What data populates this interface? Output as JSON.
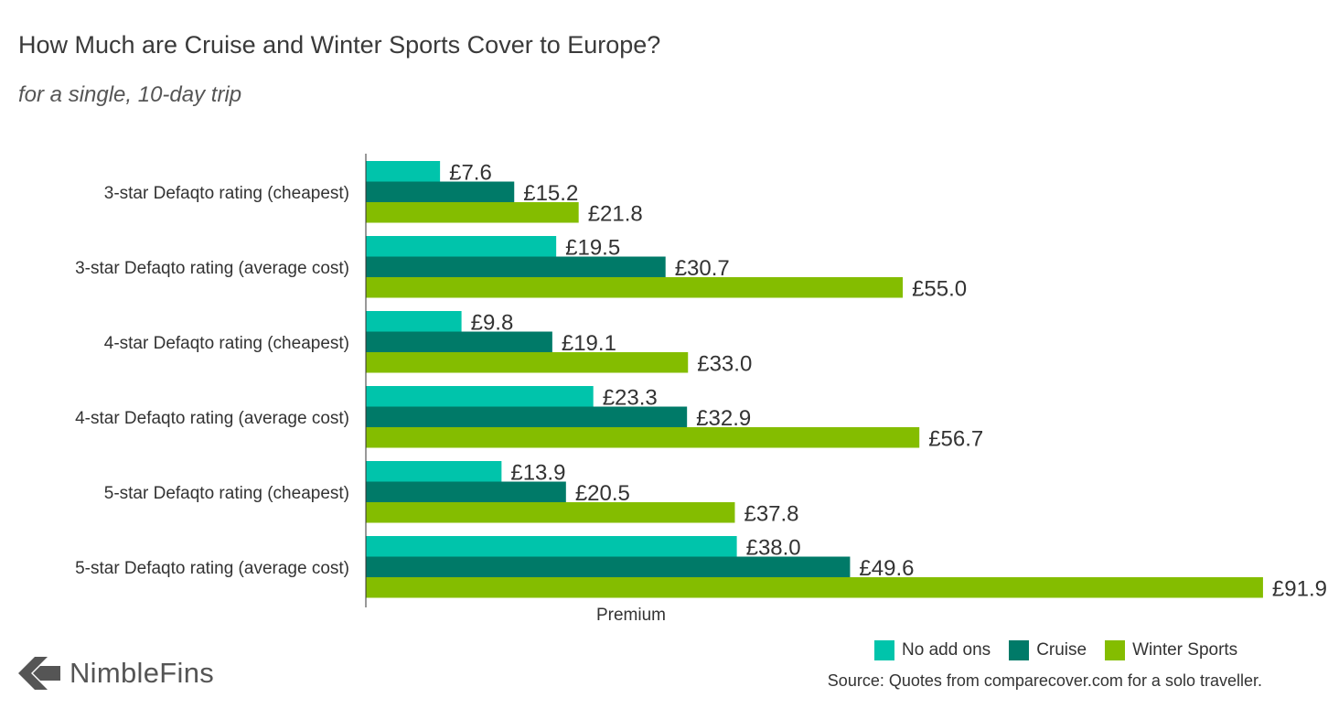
{
  "header": {
    "title": "How Much are Cruise and Winter Sports Cover to Europe?",
    "subtitle": "for a single, 10-day trip"
  },
  "footer": {
    "brand": "NimbleFins",
    "source": "Source: Quotes from comparecover.com for a solo traveller."
  },
  "colors": {
    "no_add_ons": "#00c4ab",
    "cruise": "#007a68",
    "winter_sports": "#84bd00",
    "logo": "#555555"
  },
  "chart_data": {
    "type": "bar",
    "orientation": "horizontal",
    "title": "How Much are Cruise and Winter Sports Cover to Europe?",
    "subtitle": "for a single, 10-day trip",
    "xlabel": "Premium",
    "ylabel": "",
    "value_prefix": "£",
    "xlim": [
      0,
      92
    ],
    "grid": false,
    "legend_position": "bottom-right",
    "categories": [
      "3-star Defaqto rating (cheapest)",
      "3-star Defaqto rating (average cost)",
      "4-star Defaqto rating (cheapest)",
      "4-star Defaqto rating (average cost)",
      "5-star Defaqto rating (cheapest)",
      "5-star Defaqto rating (average cost)"
    ],
    "series": [
      {
        "name": "No add ons",
        "color": "#00c4ab",
        "values": [
          7.6,
          19.5,
          9.8,
          23.3,
          13.9,
          38.0
        ]
      },
      {
        "name": "Cruise",
        "color": "#007a68",
        "values": [
          15.2,
          30.7,
          19.1,
          32.9,
          20.5,
          49.6
        ]
      },
      {
        "name": "Winter Sports",
        "color": "#84bd00",
        "values": [
          21.8,
          55.0,
          33.0,
          56.7,
          37.8,
          91.9
        ]
      }
    ]
  }
}
